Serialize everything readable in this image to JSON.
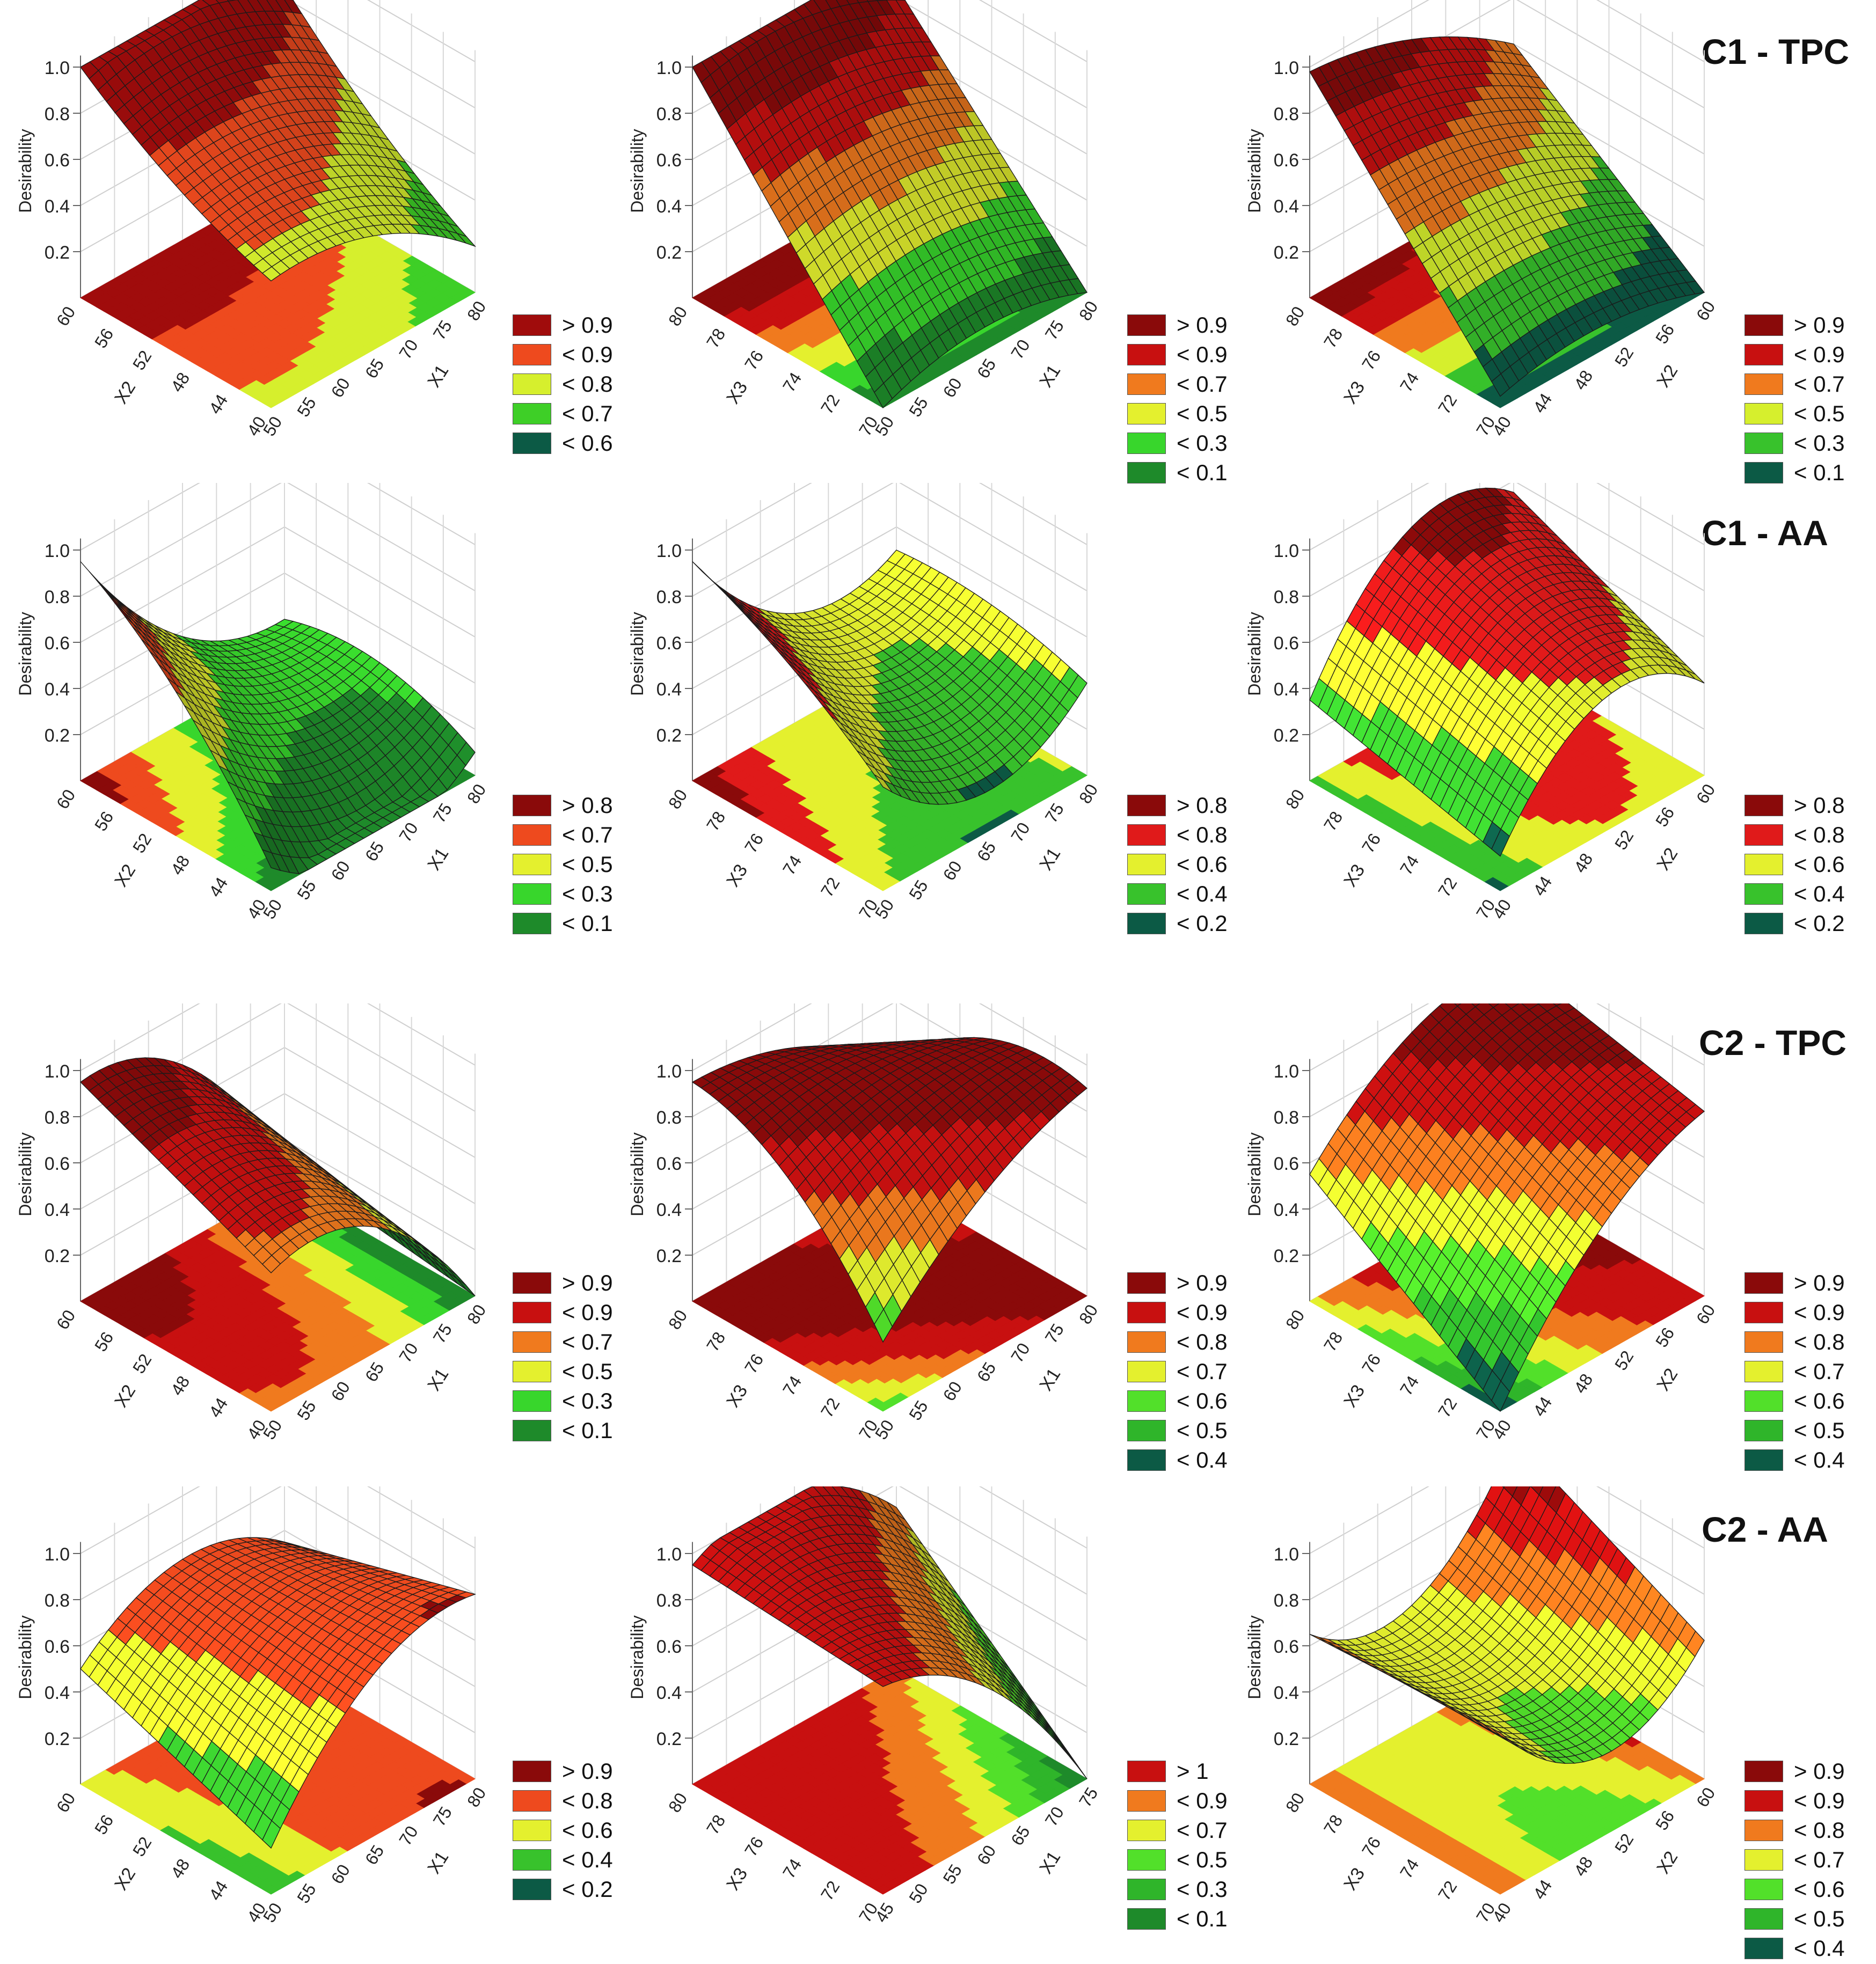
{
  "row_titles": [
    "C1 - TPC",
    "C1 - AA",
    "C2 - TPC",
    "C2 - AA"
  ],
  "chart_data": [
    {
      "type": "surface",
      "row": "C1 - TPC",
      "zlabel": "Desirability",
      "zticks": [
        "0.2",
        "0.4",
        "0.6",
        "0.8",
        "1.0"
      ],
      "xlabel": "X1",
      "xticks": [
        "50",
        "55",
        "60",
        "65",
        "70",
        "75",
        "80"
      ],
      "ylabel": "X2",
      "yticks": [
        "40",
        "44",
        "48",
        "52",
        "56",
        "60"
      ],
      "legend": [
        "> 0.9",
        "< 0.9",
        "< 0.8",
        "< 0.7",
        "< 0.6"
      ],
      "legend_colors": [
        "#a00c0c",
        "#ee4a1e",
        "#d6ef2d",
        "#3ecf27",
        "#0c5a45"
      ],
      "corners": [
        0.55,
        0.2,
        1.0,
        0.85
      ],
      "curv": 0.12,
      "twist": -0.05
    },
    {
      "type": "surface",
      "row": "C1 - TPC",
      "zlabel": "Desirability",
      "zticks": [
        "0.2",
        "0.4",
        "0.6",
        "0.8",
        "1.0"
      ],
      "xlabel": "X1",
      "xticks": [
        "50",
        "55",
        "60",
        "65",
        "70",
        "75",
        "80"
      ],
      "ylabel": "X3",
      "yticks": [
        "70",
        "72",
        "74",
        "76",
        "78",
        "80"
      ],
      "legend": [
        "> 0.9",
        "< 0.9",
        "< 0.7",
        "< 0.5",
        "< 0.3",
        "< 0.1"
      ],
      "legend_colors": [
        "#8a0a0a",
        "#c81010",
        "#f07a1e",
        "#e4f02e",
        "#38d62c",
        "#1e8a2a"
      ],
      "corners": [
        0.0,
        0.0,
        1.0,
        0.85
      ],
      "curv": 0.1,
      "twist": 0.0
    },
    {
      "type": "surface",
      "row": "C1 - TPC",
      "zlabel": "Desirability",
      "zticks": [
        "0.2",
        "0.4",
        "0.6",
        "0.8",
        "1.0"
      ],
      "xlabel": "X2",
      "xticks": [
        "40",
        "44",
        "48",
        "52",
        "56",
        "60"
      ],
      "ylabel": "X3",
      "yticks": [
        "70",
        "72",
        "74",
        "76",
        "78",
        "80"
      ],
      "legend": [
        "> 0.9",
        "< 0.9",
        "< 0.7",
        "< 0.5",
        "< 0.3",
        "< 0.1"
      ],
      "legend_colors": [
        "#8a0a0a",
        "#c81010",
        "#f07a1e",
        "#d6ef2d",
        "#38c22c",
        "#0c5a45"
      ],
      "corners": [
        0.05,
        0.0,
        0.98,
        0.6
      ],
      "curv": 0.08,
      "twist": 0.0
    },
    {
      "type": "surface",
      "row": "C1 - AA",
      "zlabel": "Desirability",
      "zticks": [
        "0.2",
        "0.4",
        "0.6",
        "0.8",
        "1.0"
      ],
      "xlabel": "X1",
      "xticks": [
        "50",
        "55",
        "60",
        "65",
        "70",
        "75",
        "80"
      ],
      "ylabel": "X2",
      "yticks": [
        "40",
        "44",
        "48",
        "52",
        "56",
        "60"
      ],
      "legend": [
        "> 0.8",
        "< 0.7",
        "< 0.5",
        "< 0.3",
        "< 0.1"
      ],
      "legend_colors": [
        "#8a0a0a",
        "#ee4a1e",
        "#e4f02e",
        "#38d62c",
        "#1e8a2a"
      ],
      "corners": [
        0.1,
        0.1,
        0.95,
        0.2
      ],
      "curv": -0.2,
      "twist": 0.1
    },
    {
      "type": "surface",
      "row": "C1 - AA",
      "zlabel": "Desirability",
      "zticks": [
        "0.2",
        "0.4",
        "0.6",
        "0.8",
        "1.0"
      ],
      "xlabel": "X1",
      "xticks": [
        "50",
        "55",
        "60",
        "65",
        "70",
        "75",
        "80"
      ],
      "ylabel": "X3",
      "yticks": [
        "70",
        "72",
        "74",
        "76",
        "78",
        "80"
      ],
      "legend": [
        "> 0.8",
        "< 0.8",
        "< 0.6",
        "< 0.4",
        "< 0.2"
      ],
      "legend_colors": [
        "#8a0a0a",
        "#e01a1a",
        "#e4f02e",
        "#38c22c",
        "#0c5a45"
      ],
      "corners": [
        0.45,
        0.4,
        0.95,
        0.5
      ],
      "curv": -0.25,
      "twist": 0.05
    },
    {
      "type": "surface",
      "row": "C1 - AA",
      "zlabel": "Desirability",
      "zticks": [
        "0.2",
        "0.4",
        "0.6",
        "0.8",
        "1.0"
      ],
      "xlabel": "X2",
      "xticks": [
        "40",
        "44",
        "48",
        "52",
        "56",
        "60"
      ],
      "ylabel": "X3",
      "yticks": [
        "70",
        "72",
        "74",
        "76",
        "78",
        "80"
      ],
      "legend": [
        "> 0.8",
        "< 0.8",
        "< 0.6",
        "< 0.4",
        "< 0.2"
      ],
      "legend_colors": [
        "#8a0a0a",
        "#e01a1a",
        "#e4f02e",
        "#38c22c",
        "#0c5a45"
      ],
      "corners": [
        0.15,
        0.4,
        0.35,
        0.75
      ],
      "curv": 0.3,
      "twist": 0.0
    },
    {
      "type": "surface",
      "row": "C2 - TPC",
      "zlabel": "Desirability",
      "zticks": [
        "0.2",
        "0.4",
        "0.6",
        "0.8",
        "1.0"
      ],
      "xlabel": "X1",
      "xticks": [
        "50",
        "55",
        "60",
        "65",
        "70",
        "75",
        "80"
      ],
      "ylabel": "X2",
      "yticks": [
        "40",
        "44",
        "48",
        "52",
        "56",
        "60"
      ],
      "legend": [
        "> 0.9",
        "< 0.9",
        "< 0.7",
        "< 0.5",
        "< 0.3",
        "< 0.1"
      ],
      "legend_colors": [
        "#8a0a0a",
        "#c81010",
        "#f07a1e",
        "#e4f02e",
        "#38d62c",
        "#1e8a2a"
      ],
      "corners": [
        0.6,
        0.0,
        0.95,
        0.1
      ],
      "curv": 0.25,
      "twist": 0.0
    },
    {
      "type": "surface",
      "row": "C2 - TPC",
      "zlabel": "Desirability",
      "zticks": [
        "0.2",
        "0.4",
        "0.6",
        "0.8",
        "1.0"
      ],
      "xlabel": "X1",
      "xticks": [
        "50",
        "55",
        "60",
        "65",
        "70",
        "75",
        "80"
      ],
      "ylabel": "X3",
      "yticks": [
        "70",
        "72",
        "74",
        "76",
        "78",
        "80"
      ],
      "legend": [
        "> 0.9",
        "< 0.9",
        "< 0.8",
        "< 0.7",
        "< 0.6",
        "< 0.5",
        "< 0.4"
      ],
      "legend_colors": [
        "#8a0a0a",
        "#c81010",
        "#f07a1e",
        "#e4f02e",
        "#52e02a",
        "#2fb52a",
        "#0c5a45"
      ],
      "corners": [
        0.3,
        0.9,
        0.95,
        0.55
      ],
      "curv": 0.1,
      "twist": 0.15
    },
    {
      "type": "surface",
      "row": "C2 - TPC",
      "zlabel": "Desirability",
      "zticks": [
        "0.2",
        "0.4",
        "0.6",
        "0.8",
        "1.0"
      ],
      "xlabel": "X2",
      "xticks": [
        "40",
        "44",
        "48",
        "52",
        "56",
        "60"
      ],
      "ylabel": "X3",
      "yticks": [
        "70",
        "72",
        "74",
        "76",
        "78",
        "80"
      ],
      "legend": [
        "> 0.9",
        "< 0.9",
        "< 0.8",
        "< 0.7",
        "< 0.6",
        "< 0.5",
        "< 0.4"
      ],
      "legend_colors": [
        "#8a0a0a",
        "#c81010",
        "#f07a1e",
        "#e4f02e",
        "#52e02a",
        "#2fb52a",
        "#0c5a45"
      ],
      "corners": [
        0.0,
        0.8,
        0.55,
        0.98
      ],
      "curv": 0.15,
      "twist": 0.0
    },
    {
      "type": "surface",
      "row": "C2 - AA",
      "zlabel": "Desirability",
      "zticks": [
        "0.2",
        "0.4",
        "0.6",
        "0.8",
        "1.0"
      ],
      "xlabel": "X1",
      "xticks": [
        "50",
        "55",
        "60",
        "65",
        "70",
        "75",
        "80"
      ],
      "ylabel": "X2",
      "yticks": [
        "40",
        "44",
        "48",
        "52",
        "56",
        "60"
      ],
      "legend": [
        "> 0.9",
        "< 0.8",
        "< 0.6",
        "< 0.4",
        "< 0.2"
      ],
      "legend_colors": [
        "#8a0a0a",
        "#ee4a1e",
        "#e4f02e",
        "#38c22c",
        "#0c5a45"
      ],
      "corners": [
        0.2,
        0.8,
        0.5,
        0.55
      ],
      "curv": 0.2,
      "twist": 0.0
    },
    {
      "type": "surface",
      "row": "C2 - AA",
      "zlabel": "Desirability",
      "zticks": [
        "0.2",
        "0.4",
        "0.6",
        "0.8",
        "1.0"
      ],
      "xlabel": "X1",
      "xticks": [
        "45",
        "50",
        "55",
        "60",
        "65",
        "70",
        "75"
      ],
      "ylabel": "X3",
      "yticks": [
        "70",
        "72",
        "74",
        "76",
        "78",
        "80"
      ],
      "legend": [
        "> 1",
        "< 0.9",
        "< 0.7",
        "< 0.5",
        "< 0.3",
        "< 0.1"
      ],
      "legend_colors": [
        "#c81010",
        "#f07a1e",
        "#e4f02e",
        "#52e02a",
        "#2fb52a",
        "#1e8a2a"
      ],
      "corners": [
        0.9,
        0.0,
        0.95,
        0.7
      ],
      "curv": 0.2,
      "twist": 0.0
    },
    {
      "type": "surface",
      "row": "C2 - AA",
      "zlabel": "Desirability",
      "zticks": [
        "0.2",
        "0.4",
        "0.6",
        "0.8",
        "1.0"
      ],
      "xlabel": "X2",
      "xticks": [
        "40",
        "44",
        "48",
        "52",
        "56",
        "60"
      ],
      "ylabel": "X3",
      "yticks": [
        "70",
        "72",
        "74",
        "76",
        "78",
        "80"
      ],
      "legend": [
        "> 0.9",
        "< 0.9",
        "< 0.8",
        "< 0.7",
        "< 0.6",
        "< 0.5",
        "< 0.4"
      ],
      "legend_colors": [
        "#8a0a0a",
        "#c81010",
        "#f07a1e",
        "#e4f02e",
        "#52e02a",
        "#2fb52a",
        "#0c5a45"
      ],
      "corners": [
        0.7,
        0.6,
        0.65,
        1.0
      ],
      "curv": -0.3,
      "twist": 0.0
    }
  ]
}
